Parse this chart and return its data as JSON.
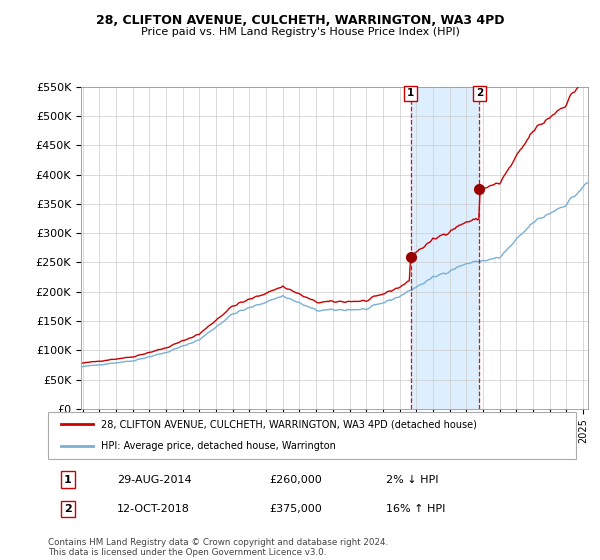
{
  "title": "28, CLIFTON AVENUE, CULCHETH, WARRINGTON, WA3 4PD",
  "subtitle": "Price paid vs. HM Land Registry's House Price Index (HPI)",
  "ylabel_ticks": [
    "£0",
    "£50K",
    "£100K",
    "£150K",
    "£200K",
    "£250K",
    "£300K",
    "£350K",
    "£400K",
    "£450K",
    "£500K",
    "£550K"
  ],
  "ylim": [
    0,
    550000
  ],
  "xlim_start": 1994.9,
  "xlim_end": 2025.3,
  "legend_line1": "28, CLIFTON AVENUE, CULCHETH, WARRINGTON, WA3 4PD (detached house)",
  "legend_line2": "HPI: Average price, detached house, Warrington",
  "annotation1_num": "1",
  "annotation1_date": "29-AUG-2014",
  "annotation1_price": "£260,000",
  "annotation1_hpi": "2% ↓ HPI",
  "annotation2_num": "2",
  "annotation2_date": "12-OCT-2018",
  "annotation2_price": "£375,000",
  "annotation2_hpi": "16% ↑ HPI",
  "footer": "Contains HM Land Registry data © Crown copyright and database right 2024.\nThis data is licensed under the Open Government Licence v3.0.",
  "point1_x": 2014.66,
  "point1_y": 260000,
  "point2_x": 2018.79,
  "point2_y": 375000,
  "line_color_red": "#cc0000",
  "line_color_blue": "#7ab0d4",
  "shade_color": "#ddeeff",
  "point_color": "#990000",
  "dashed_color": "#cc0000",
  "background_color": "#ffffff",
  "grid_color": "#cccccc"
}
